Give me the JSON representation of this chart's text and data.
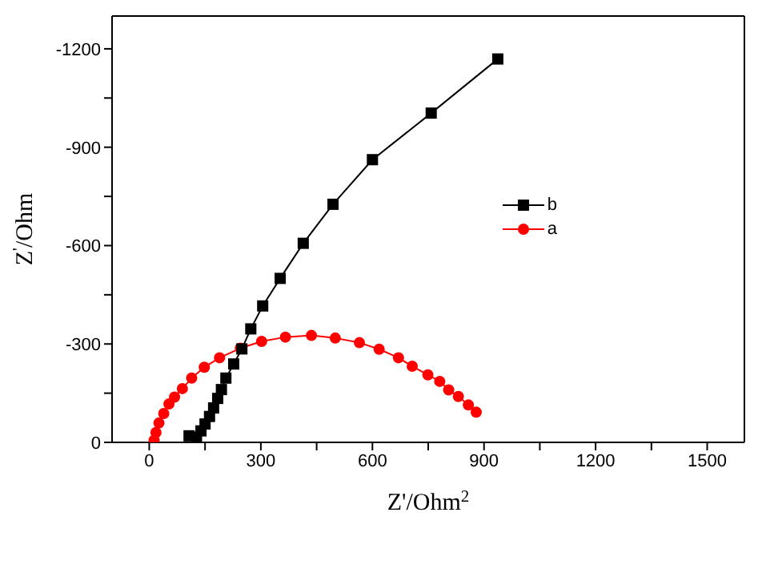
{
  "chart_data": {
    "type": "line",
    "xlabel": "Z'/Ohm$^{2}$",
    "ylabel": "Z$^{'}$/Ohm",
    "xlim": [
      -100,
      1600
    ],
    "ylim": [
      0,
      -1300
    ],
    "xticks": [
      0,
      {
        "value": 150,
        "label": null
      },
      300,
      {
        "value": 450,
        "label": null
      },
      600,
      {
        "value": 750,
        "label": null
      },
      900,
      {
        "value": 1050,
        "label": null
      },
      1200,
      {
        "value": 1350,
        "label": null
      },
      1500
    ],
    "yticks": [
      0,
      {
        "value": -150,
        "label": null
      },
      -300,
      {
        "value": -450,
        "label": null
      },
      -600,
      {
        "value": -750,
        "label": null
      },
      -900,
      {
        "value": -1050,
        "label": null
      },
      -1200
    ],
    "legend": "right",
    "line_style": "solid",
    "series": [
      {
        "name": "b",
        "color": "#000000",
        "marker": "square",
        "x": [
          107,
          127,
          139,
          150,
          162,
          173,
          184,
          194,
          206,
          227,
          249,
          273,
          305,
          352,
          414,
          494,
          600,
          758,
          937
        ],
        "values": [
          -20,
          -16,
          -35,
          -56,
          -79,
          -105,
          -134,
          -161,
          -196,
          -239,
          -285,
          -346,
          -416,
          -500,
          -607,
          -726,
          -862,
          -1004,
          -1169
        ]
      },
      {
        "name": "a",
        "color": "#ff0000",
        "marker": "circle",
        "x": [
          13,
          18,
          26,
          39,
          53,
          68,
          89,
          114,
          148,
          189,
          245,
          302,
          366,
          436,
          500,
          565,
          618,
          670,
          707,
          749,
          781,
          805,
          831,
          858,
          879
        ],
        "values": [
          -6,
          -30,
          -59,
          -88,
          -117,
          -138,
          -164,
          -196,
          -229,
          -258,
          -287,
          -308,
          -321,
          -326,
          -318,
          -304,
          -284,
          -258,
          -232,
          -206,
          -186,
          -160,
          -140,
          -114,
          -92
        ]
      }
    ]
  }
}
